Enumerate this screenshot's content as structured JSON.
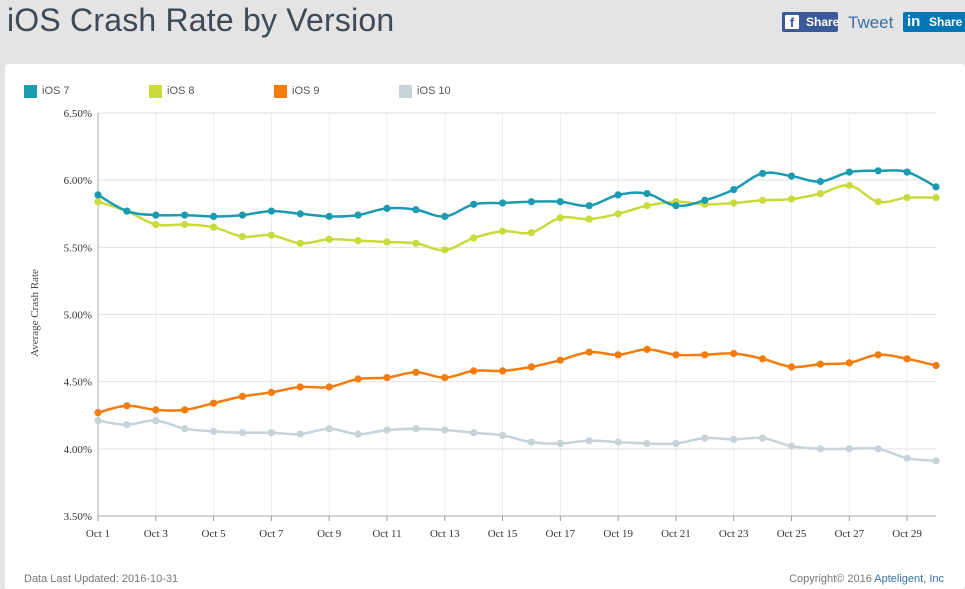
{
  "header": {
    "title": "iOS Crash Rate by Version",
    "share": {
      "facebook_label": "Share",
      "tweet_label": "Tweet",
      "linkedin_label": "Share"
    }
  },
  "footer": {
    "updated": "Data Last Updated: 2016-10-31",
    "copyright_prefix": "Copyright© 2016 ",
    "copyright_company": "Apteligent, Inc"
  },
  "chart_data": {
    "type": "line",
    "title": "iOS Crash Rate by Version",
    "ylabel": "Average Crash Rate",
    "xlabel": "",
    "ylim": [
      3.5,
      6.5
    ],
    "y_ticks": [
      "3.50%",
      "4.00%",
      "4.50%",
      "5.00%",
      "5.50%",
      "6.00%",
      "6.50%"
    ],
    "y_tick_values": [
      3.5,
      4.0,
      4.5,
      5.0,
      5.5,
      6.0,
      6.5
    ],
    "x_tick_labels": [
      "Oct 1",
      "Oct 3",
      "Oct 5",
      "Oct 7",
      "Oct 9",
      "Oct 11",
      "Oct 13",
      "Oct 15",
      "Oct 17",
      "Oct 19",
      "Oct 21",
      "Oct 23",
      "Oct 25",
      "Oct 27",
      "Oct 29"
    ],
    "x_tick_days": [
      1,
      3,
      5,
      7,
      9,
      11,
      13,
      15,
      17,
      19,
      21,
      23,
      25,
      27,
      29
    ],
    "x": [
      1,
      2,
      3,
      4,
      5,
      6,
      7,
      8,
      9,
      10,
      11,
      12,
      13,
      14,
      15,
      16,
      17,
      18,
      19,
      20,
      21,
      22,
      23,
      24,
      25,
      26,
      27,
      28,
      29,
      30
    ],
    "grid": true,
    "legend_position": "top-left",
    "series": [
      {
        "name": "iOS 7",
        "color": "#1a9bb0",
        "values": [
          5.89,
          5.77,
          5.74,
          5.74,
          5.73,
          5.74,
          5.77,
          5.75,
          5.73,
          5.74,
          5.79,
          5.78,
          5.73,
          5.82,
          5.83,
          5.84,
          5.84,
          5.81,
          5.89,
          5.9,
          5.81,
          5.85,
          5.93,
          6.05,
          6.03,
          5.99,
          6.06,
          6.07,
          6.06,
          5.95
        ]
      },
      {
        "name": "iOS 8",
        "color": "#c9db3a",
        "values": [
          5.84,
          5.77,
          5.67,
          5.67,
          5.65,
          5.58,
          5.59,
          5.53,
          5.56,
          5.55,
          5.54,
          5.53,
          5.48,
          5.57,
          5.62,
          5.61,
          5.72,
          5.71,
          5.75,
          5.81,
          5.84,
          5.82,
          5.83,
          5.85,
          5.86,
          5.9,
          5.96,
          5.84,
          5.87,
          5.87
        ]
      },
      {
        "name": "iOS 9",
        "color": "#f47c0c",
        "values": [
          4.27,
          4.32,
          4.29,
          4.29,
          4.34,
          4.39,
          4.42,
          4.46,
          4.46,
          4.52,
          4.53,
          4.57,
          4.53,
          4.58,
          4.58,
          4.61,
          4.66,
          4.72,
          4.7,
          4.74,
          4.7,
          4.7,
          4.71,
          4.67,
          4.61,
          4.63,
          4.64,
          4.7,
          4.67,
          4.62
        ]
      },
      {
        "name": "iOS 10",
        "color": "#c6d3d9",
        "values": [
          4.21,
          4.18,
          4.21,
          4.15,
          4.13,
          4.12,
          4.12,
          4.11,
          4.15,
          4.11,
          4.14,
          4.15,
          4.14,
          4.12,
          4.1,
          4.05,
          4.04,
          4.06,
          4.05,
          4.04,
          4.04,
          4.08,
          4.07,
          4.08,
          4.02,
          4.0,
          4.0,
          4.0,
          3.93,
          3.91
        ]
      }
    ]
  }
}
